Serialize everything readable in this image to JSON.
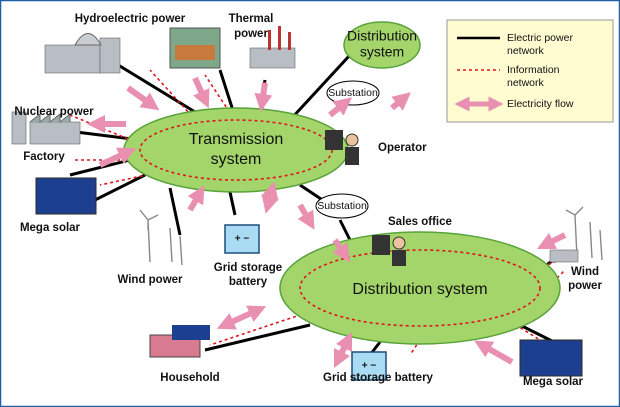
{
  "nodes": [
    {
      "lines": [
        "Transmission",
        "system"
      ]
    },
    {
      "lines": [
        "Distribution system"
      ]
    },
    {
      "lines": [
        "Distribution",
        "system"
      ]
    },
    {
      "lines": [
        "Substation"
      ]
    },
    {
      "lines": [
        "Substation"
      ]
    },
    {
      "lines": [
        "Hydroelectric power"
      ]
    },
    {
      "lines": [
        "Thermal",
        "power"
      ]
    },
    {
      "lines": [
        "Nuclear power"
      ]
    },
    {
      "lines": [
        "Factory"
      ]
    },
    {
      "lines": [
        "Mega solar"
      ]
    },
    {
      "lines": [
        "Wind power"
      ]
    },
    {
      "lines": [
        "Grid storage",
        "battery"
      ]
    },
    {
      "lines": [
        "Operator"
      ]
    },
    {
      "lines": [
        "Sales office"
      ]
    },
    {
      "lines": [
        "Wind",
        "power"
      ]
    },
    {
      "lines": [
        "Household"
      ]
    },
    {
      "lines": [
        "Grid storage battery"
      ]
    },
    {
      "lines": [
        "Mega solar"
      ]
    }
  ],
  "legend": {
    "items": [
      {
        "lines": [
          "Electric power",
          "network"
        ]
      },
      {
        "lines": [
          "Information",
          "network"
        ]
      },
      {
        "lines": [
          "Electricity flow"
        ]
      }
    ]
  }
}
